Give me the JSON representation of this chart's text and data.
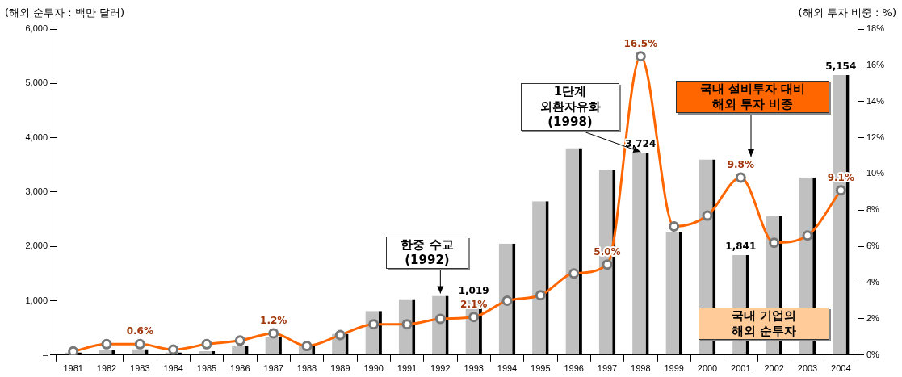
{
  "chart_data": {
    "type": "bar",
    "ylabel": "(해외 순투자 : 백만 달러)",
    "y2label": "(해외 투자 비중 : %)",
    "categories": [
      "1981",
      "1982",
      "1983",
      "1984",
      "1985",
      "1986",
      "1987",
      "1988",
      "1989",
      "1990",
      "1991",
      "1992",
      "1993",
      "1994",
      "1995",
      "1996",
      "1997",
      "1998",
      "1999",
      "2000",
      "2001",
      "2002",
      "2003",
      "2004"
    ],
    "series": [
      {
        "name": "국내 기업의\n해외 순투자",
        "color": "#c0c0c0",
        "values": [
          50,
          100,
          110,
          50,
          70,
          170,
          330,
          170,
          390,
          810,
          1030,
          1090,
          1019,
          2050,
          2830,
          3810,
          3410,
          3724,
          2270,
          3600,
          1841,
          2560,
          3270,
          5154
        ],
        "value_labels": [
          null,
          null,
          null,
          null,
          null,
          null,
          null,
          null,
          null,
          null,
          null,
          null,
          "1,019",
          null,
          null,
          null,
          null,
          "3,724",
          null,
          null,
          "1,841",
          null,
          null,
          "5,154"
        ]
      },
      {
        "name": "국내 설비투자 대비\n해외 투자 비중",
        "type": "line",
        "axis": "y2",
        "color": "#ff6600",
        "marker": "circle",
        "values": [
          0.2,
          0.6,
          0.6,
          0.3,
          0.6,
          0.8,
          1.2,
          0.5,
          1.1,
          1.7,
          1.7,
          2.0,
          2.1,
          3.0,
          3.3,
          4.5,
          5.0,
          16.5,
          7.1,
          7.7,
          9.8,
          6.2,
          6.6,
          9.1
        ],
        "value_labels": [
          null,
          null,
          "0.6%",
          null,
          null,
          null,
          "1.2%",
          null,
          null,
          null,
          null,
          null,
          "2.1%",
          null,
          null,
          null,
          "5.0%",
          "16.5%",
          null,
          null,
          "9.8%",
          null,
          null,
          "9.1%"
        ]
      }
    ],
    "ylim": [
      0,
      6000
    ],
    "yticks": [
      {
        "value": 0,
        "label": "–"
      },
      {
        "value": 1000,
        "label": "1,000"
      },
      {
        "value": 2000,
        "label": "2,000"
      },
      {
        "value": 3000,
        "label": "3,000"
      },
      {
        "value": 4000,
        "label": "4,000"
      },
      {
        "value": 5000,
        "label": "5,000"
      },
      {
        "value": 6000,
        "label": "6,000"
      }
    ],
    "y2lim": [
      0,
      18
    ],
    "y2ticks": [
      {
        "value": 0,
        "label": "0%"
      },
      {
        "value": 2,
        "label": "2%"
      },
      {
        "value": 4,
        "label": "4%"
      },
      {
        "value": 6,
        "label": "6%"
      },
      {
        "value": 8,
        "label": "8%"
      },
      {
        "value": 10,
        "label": "10%"
      },
      {
        "value": 12,
        "label": "12%"
      },
      {
        "value": 14,
        "label": "14%"
      },
      {
        "value": 16,
        "label": "16%"
      },
      {
        "value": 18,
        "label": "18%"
      }
    ],
    "annotations": [
      {
        "text": "한중 수교\n(1992)",
        "x": "1992",
        "y": 1090
      },
      {
        "text": "1단계\n외환자유화\n(1998)",
        "x": "1998",
        "y": 3724
      }
    ]
  }
}
